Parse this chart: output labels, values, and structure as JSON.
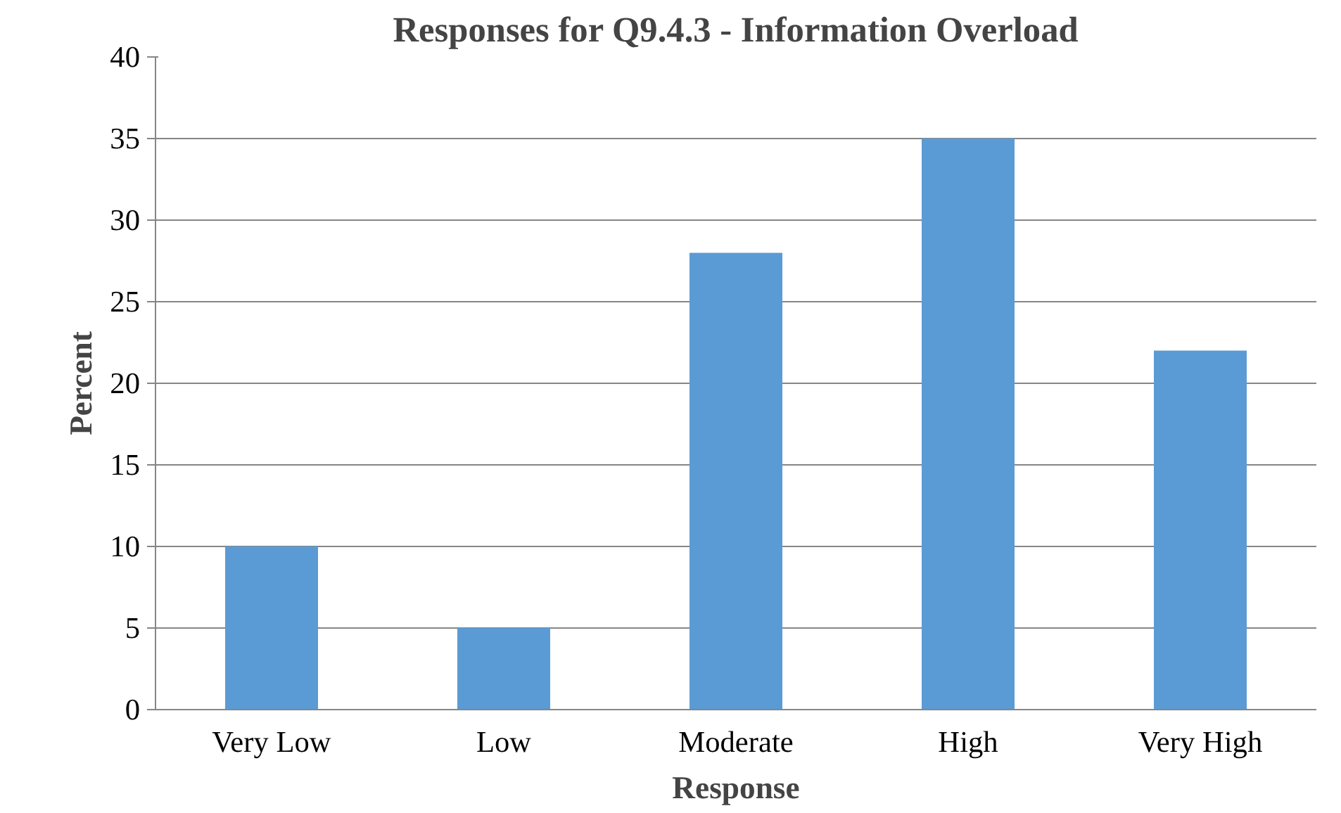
{
  "chart_data": {
    "type": "bar",
    "title": "Responses for Q9.4.3 - Information Overload",
    "xlabel": "Response",
    "ylabel": "Percent",
    "categories": [
      "Very Low",
      "Low",
      "Moderate",
      "High",
      "Very High"
    ],
    "values": [
      10,
      5,
      28,
      35,
      22
    ],
    "color": "#5b9bd5",
    "ylim": [
      0,
      40
    ],
    "yticks": [
      0,
      5,
      10,
      15,
      20,
      25,
      30,
      35,
      40
    ],
    "grid": "y"
  }
}
